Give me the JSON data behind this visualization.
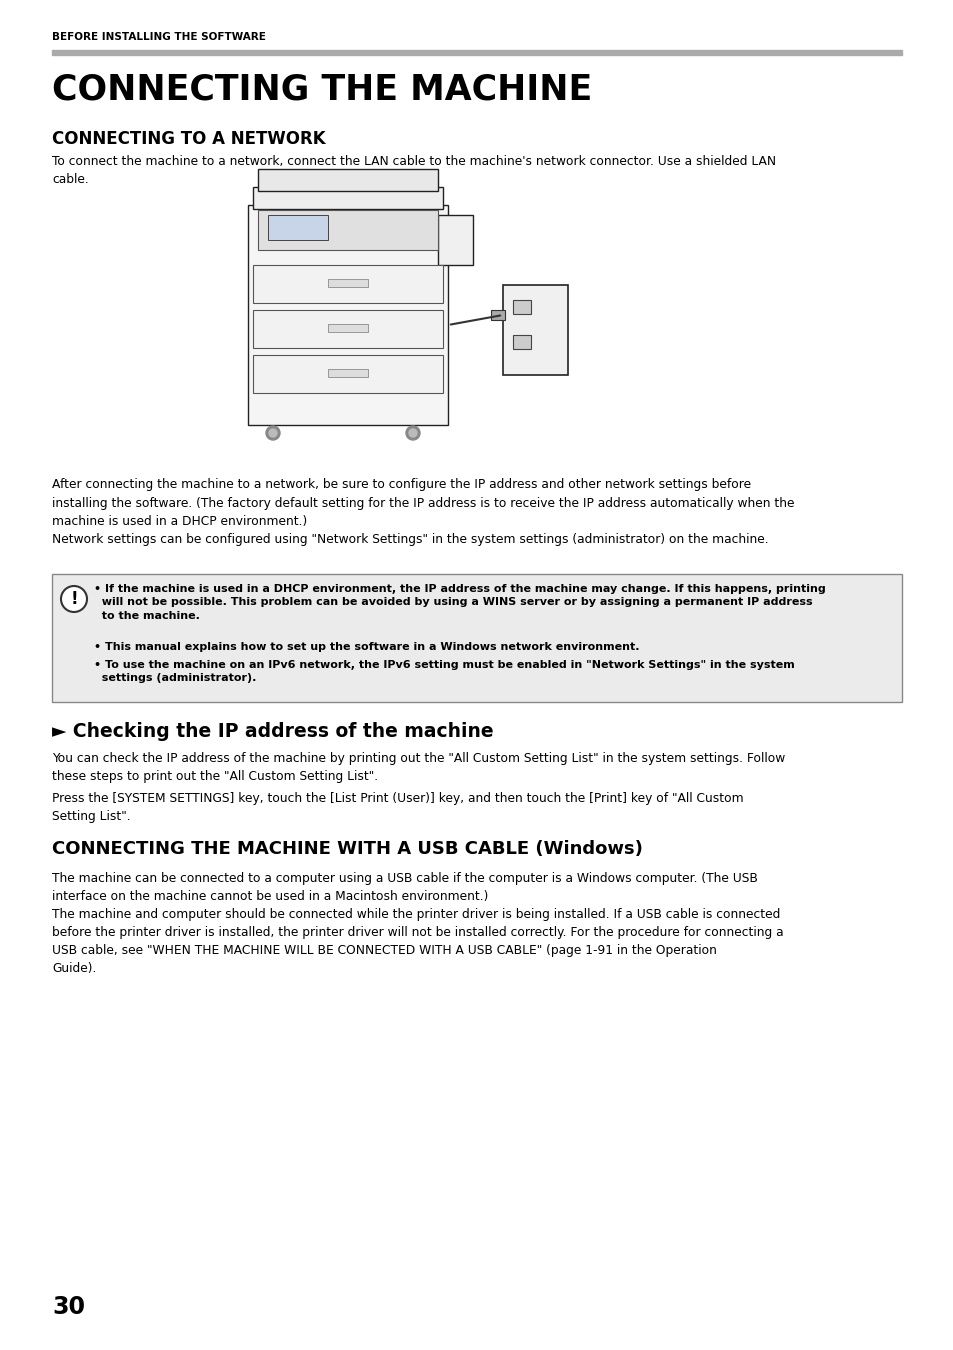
{
  "page_header": "BEFORE INSTALLING THE SOFTWARE",
  "main_title": "CONNECTING THE MACHINE",
  "section1_title": "CONNECTING TO A NETWORK",
  "section1_body": "To connect the machine to a network, connect the LAN cable to the machine's network connector. Use a shielded LAN\ncable.",
  "after_image_text": "After connecting the machine to a network, be sure to configure the IP address and other network settings before\ninstalling the software. (The factory default setting for the IP address is to receive the IP address automatically when the\nmachine is used in a DHCP environment.)\nNetwork settings can be configured using \"Network Settings\" in the system settings (administrator) on the machine.",
  "warning_bullet1": "• If the machine is used in a DHCP environment, the IP address of the machine may change. If this happens, printing\n  will not be possible. This problem can be avoided by using a WINS server or by assigning a permanent IP address\n  to the machine.",
  "warning_bullet2": "• This manual explains how to set up the software in a Windows network environment.",
  "warning_bullet3": "• To use the machine on an IPv6 network, the IPv6 setting must be enabled in \"Network Settings\" in the system\n  settings (administrator).",
  "section2_title": "► Checking the IP address of the machine",
  "section2_body1": "You can check the IP address of the machine by printing out the \"All Custom Setting List\" in the system settings. Follow\nthese steps to print out the \"All Custom Setting List\".",
  "section2_body2": "Press the [SYSTEM SETTINGS] key, touch the [List Print (User)] key, and then touch the [Print] key of \"All Custom\nSetting List\".",
  "section3_title": "CONNECTING THE MACHINE WITH A USB CABLE (Windows)",
  "section3_body": "The machine can be connected to a computer using a USB cable if the computer is a Windows computer. (The USB\ninterface on the machine cannot be used in a Macintosh environment.)\nThe machine and computer should be connected while the printer driver is being installed. If a USB cable is connected\nbefore the printer driver is installed, the printer driver will not be installed correctly. For the procedure for connecting a\nUSB cable, see \"WHEN THE MACHINE WILL BE CONNECTED WITH A USB CABLE\" (page 1-91 in the Operation\nGuide).",
  "page_number": "30",
  "bg_color": "#ffffff",
  "header_bar_color": "#aaaaaa",
  "warning_box_color": "#ebebeb",
  "warning_border_color": "#888888",
  "text_color": "#000000"
}
